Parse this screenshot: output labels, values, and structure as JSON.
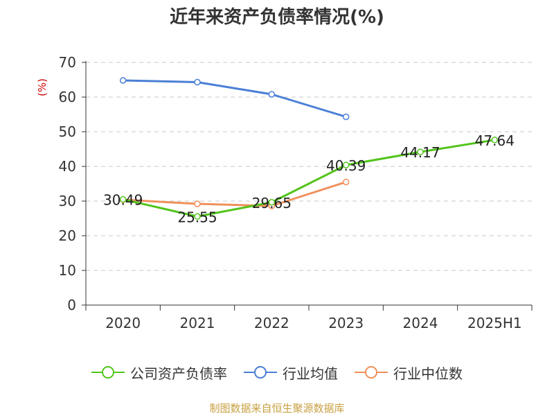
{
  "chart_data": {
    "type": "line",
    "title": "近年来资产负债率情况(%)",
    "ylabel": "(%)",
    "ylim": [
      0,
      70
    ],
    "yticks": [
      0,
      10,
      20,
      30,
      40,
      50,
      60,
      70
    ],
    "categories": [
      "2020",
      "2021",
      "2022",
      "2023",
      "2024",
      "2025H1"
    ],
    "grid": true,
    "legend": "bottom",
    "series": [
      {
        "name": "公司资产负债率",
        "color": "#52c41a",
        "values": [
          30.49,
          25.55,
          29.65,
          40.39,
          44.17,
          47.64
        ],
        "labels": [
          "30.49",
          "25.55",
          "29.65",
          "40.39",
          "44.17",
          "47.64"
        ]
      },
      {
        "name": "行业均值",
        "color": "#4a7fd6",
        "values": [
          64.8,
          64.3,
          60.8,
          54.3,
          null,
          null
        ]
      },
      {
        "name": "行业中位数",
        "color": "#f0905a",
        "values": [
          30.4,
          29.2,
          28.6,
          35.5,
          null,
          null
        ]
      }
    ]
  },
  "source_note": "制图数据来自恒生聚源数据库",
  "colors": {
    "axis": "#333333",
    "ylabel": "#cc0000",
    "grid": "#c8c8c8",
    "source": "#c8a040"
  }
}
